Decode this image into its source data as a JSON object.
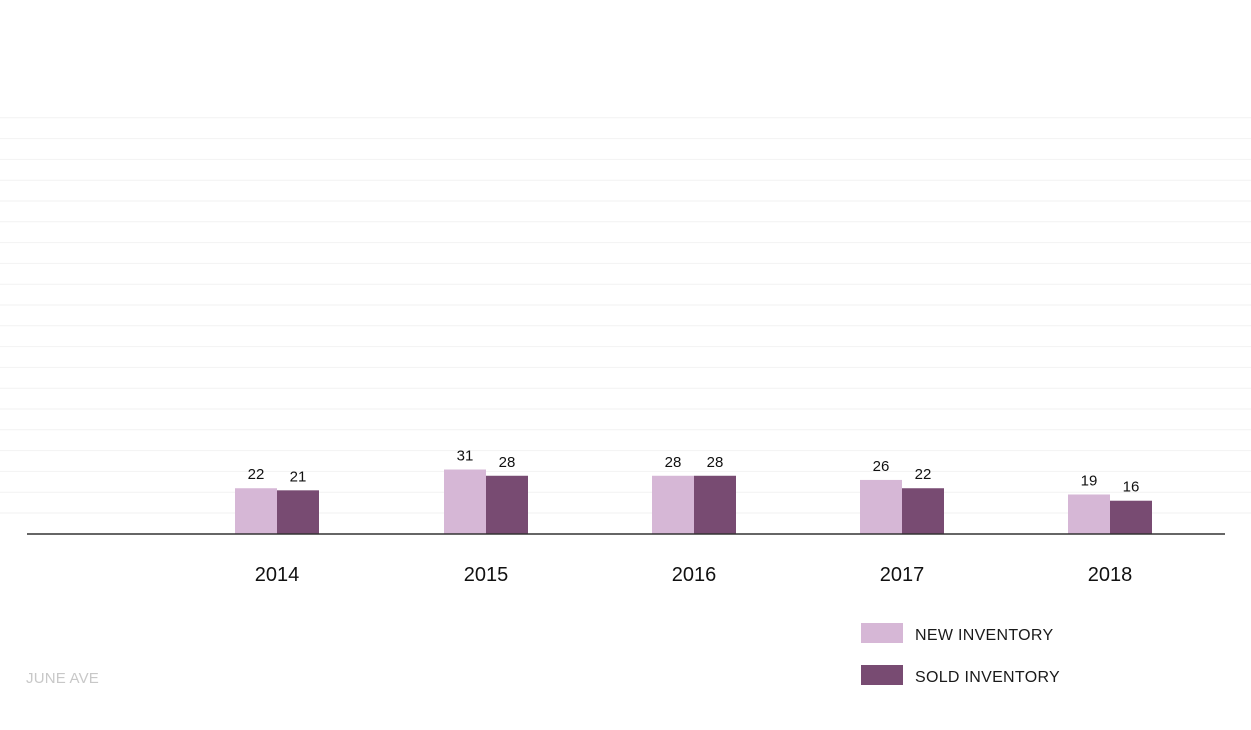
{
  "chart_data": {
    "type": "bar",
    "categories": [
      "2014",
      "2015",
      "2016",
      "2017",
      "2018"
    ],
    "series": [
      {
        "name": "NEW INVENTORY",
        "values": [
          22,
          31,
          28,
          26,
          19
        ],
        "color": "#d6b7d6"
      },
      {
        "name": "SOLD INVENTORY",
        "values": [
          21,
          28,
          28,
          22,
          16
        ],
        "color": "#784b72"
      }
    ],
    "ylim": [
      0,
      200
    ],
    "grid": true,
    "legend_position": "bottom-right",
    "title": "",
    "xlabel": "",
    "ylabel": ""
  },
  "legend": {
    "new_label": "NEW INVENTORY",
    "sold_label": "SOLD INVENTORY"
  },
  "watermark": "JUNE AVE"
}
